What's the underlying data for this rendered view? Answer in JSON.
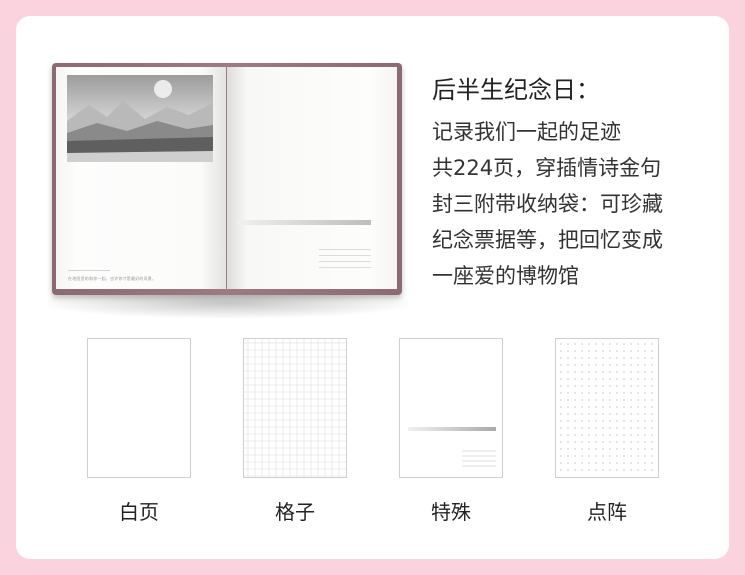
{
  "description": {
    "title": "后半生纪念日：",
    "lines": [
      "记录我们一起的足迹",
      "共224页，穿插情诗金句",
      "封三附带收纳袋：可珍藏",
      "纪念票据等，把回忆变成",
      "一座爱的博物馆"
    ]
  },
  "notebook": {
    "photo_caption": "在地图里的和你一起，也许你才是最好的风景。"
  },
  "page_styles": [
    {
      "label": "白页",
      "pattern": "blank"
    },
    {
      "label": "格子",
      "pattern": "grid"
    },
    {
      "label": "特殊",
      "pattern": "special"
    },
    {
      "label": "点阵",
      "pattern": "dot"
    }
  ],
  "colors": {
    "background": "#fbd3de",
    "card": "#ffffff",
    "cover": "#9d7b83"
  }
}
